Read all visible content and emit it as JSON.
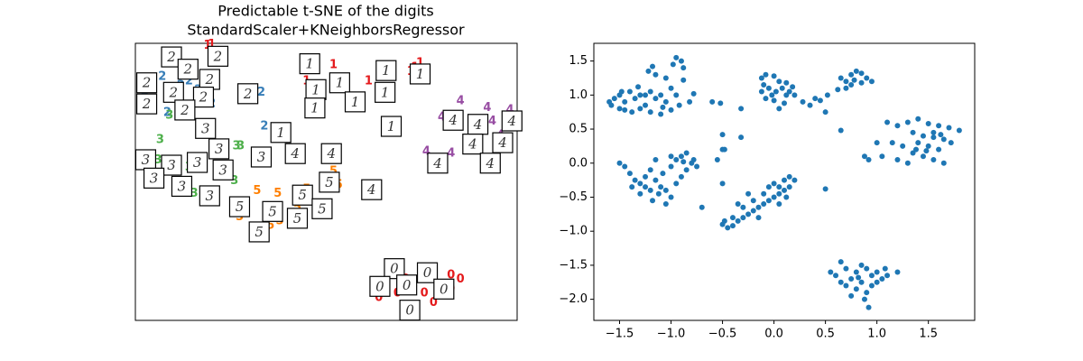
{
  "chart_data": [
    {
      "type": "text-scatter",
      "title": "Predictable t-SNE of the digits",
      "subtitle": "StandardScaler+KNeighborsRegressor",
      "xlim": [
        -1.75,
        1.95
      ],
      "ylim": [
        -2.31,
        1.76
      ],
      "series": [
        {
          "label": "0",
          "color": "#e41a1c",
          "x": [
            0.7,
            0.87,
            1.31,
            1.4,
            1.14,
            0.79,
            1.05,
            1.31,
            0.61,
            0.96
          ],
          "y": [
            -1.58,
            -1.71,
            -1.85,
            -1.71,
            -2.05,
            -1.91,
            -1.91,
            -1.65,
            -1.98,
            -2.11
          ],
          "images": {
            "x": [
              0.76,
              1.08,
              0.62,
              0.88,
              1.24,
              0.91
            ],
            "y": [
              -1.55,
              -1.61,
              -1.81,
              -1.79,
              -1.85,
              -2.16
            ]
          }
        },
        {
          "label": "1",
          "color": "#e41a1c",
          "x": [
            -1.05,
            -1.01,
            0.17,
            -0.09,
            0.51,
            0.7,
            0.96,
            0.92,
            0.0,
            1.01
          ],
          "y": [
            1.73,
            1.74,
            1.44,
            1.2,
            1.2,
            1.4,
            1.4,
            1.34,
            1.4,
            1.47
          ],
          "images": {
            "x": [
              -0.06,
              0.0,
              0.23,
              -0.01,
              0.38,
              0.68,
              1.01,
              0.67,
              -0.34,
              0.73
            ],
            "y": [
              1.46,
              1.08,
              1.18,
              0.81,
              0.9,
              1.36,
              1.31,
              1.04,
              0.45,
              0.54
            ]
          }
        },
        {
          "label": "2",
          "color": "#377eb8",
          "x": [
            -1.49,
            -1.66,
            -1.36,
            -1.44,
            -1.23,
            -1.01,
            -0.53,
            -0.5,
            -1.58,
            -1.14,
            -1.31
          ],
          "y": [
            1.27,
            1.07,
            0.94,
            0.74,
            1.2,
            0.87,
            1.04,
            0.54,
            0.83,
            1.07,
            1.14
          ],
          "images": {
            "x": [
              -1.4,
              -1.24,
              -1.03,
              -1.64,
              -1.38,
              -1.09,
              -1.64,
              -1.27,
              -0.66,
              -0.95
            ],
            "y": [
              1.56,
              1.38,
              1.23,
              1.18,
              1.04,
              0.97,
              0.87,
              0.78,
              1.02,
              1.57
            ]
          }
        },
        {
          "label": "3",
          "color": "#4daf4a",
          "x": [
            -1.51,
            -1.42,
            -0.73,
            -0.77,
            -1.01,
            -1.23,
            -1.36,
            -0.79,
            -1.18,
            -1.53
          ],
          "y": [
            0.34,
            0.7,
            0.25,
            0.25,
            0.14,
            -0.06,
            -0.1,
            -0.26,
            -0.45,
            0.04
          ],
          "images": {
            "x": [
              -1.07,
              -0.94,
              -1.65,
              -1.4,
              -1.15,
              -0.9,
              -1.57,
              -1.3,
              -1.03,
              -0.53
            ],
            "y": [
              0.51,
              0.21,
              0.05,
              -0.03,
              0.01,
              -0.1,
              -0.22,
              -0.34,
              -0.48,
              0.09
            ]
          }
        },
        {
          "label": "4",
          "color": "#984ea3",
          "x": [
            1.4,
            1.66,
            1.71,
            1.22,
            1.07,
            1.49,
            1.79,
            1.31,
            1.88
          ],
          "y": [
            0.91,
            0.81,
            0.61,
            0.67,
            0.17,
            0.28,
            0.41,
            0.14,
            0.78
          ],
          "images": {
            "x": [
              0.15,
              1.33,
              1.57,
              1.9,
              1.81,
              1.52,
              1.69,
              1.18,
              0.54,
              -0.2
            ],
            "y": [
              0.14,
              0.63,
              0.57,
              0.62,
              0.3,
              0.28,
              0.0,
              0.0,
              -0.39,
              0.14
            ]
          }
        },
        {
          "label": "5",
          "color": "#ff7f00",
          "x": [
            0.17,
            0.09,
            -0.09,
            -0.18,
            -0.35,
            -0.57,
            -0.37,
            -0.74,
            0.0,
            0.22,
            -0.44
          ],
          "y": [
            -0.12,
            -0.26,
            -0.39,
            -0.65,
            -0.85,
            -0.41,
            -0.45,
            -0.79,
            -0.65,
            -0.32,
            -0.92
          ],
          "images": {
            "x": [
              0.13,
              -0.13,
              0.06,
              -0.18,
              -0.42,
              -0.74,
              -0.55
            ],
            "y": [
              -0.28,
              -0.47,
              -0.67,
              -0.81,
              -0.71,
              -0.64,
              -1.01
            ]
          }
        }
      ]
    },
    {
      "type": "scatter",
      "color": "#1f77b4",
      "xlim": [
        -1.75,
        1.95
      ],
      "ylim": [
        -2.31,
        1.76
      ],
      "xticks": [
        {
          "value": -1.5,
          "label": "−1.5"
        },
        {
          "value": -1.0,
          "label": "−1.0"
        },
        {
          "value": -0.5,
          "label": "−0.5"
        },
        {
          "value": 0.0,
          "label": "0.0"
        },
        0.5,
        {
          "value": 1.0,
          "label": "1.0"
        },
        1.5
      ],
      "yticks": [
        {
          "value": -2.0,
          "label": "−2.0"
        },
        {
          "value": -1.5,
          "label": "−1.5"
        },
        {
          "value": -1.0,
          "label": "−1.0"
        },
        {
          "value": -0.5,
          "label": "−0.5"
        },
        {
          "value": 0.0,
          "label": "0.0"
        },
        0.5,
        {
          "value": 1.0,
          "label": "1.0"
        },
        1.5
      ],
      "x": [
        -1.58,
        -1.55,
        -1.5,
        -1.45,
        -1.4,
        -1.35,
        -1.3,
        -1.25,
        -1.2,
        -1.15,
        -1.1,
        -1.05,
        -1.0,
        -1.05,
        -0.98,
        -0.95,
        -0.9,
        -0.88,
        -1.22,
        -1.18,
        -1.15,
        -1.45,
        -1.38,
        -1.3,
        -1.2,
        -1.1,
        -1.0,
        -0.92,
        -1.5,
        -1.6,
        -1.48,
        -1.32,
        -1.25,
        -1.08,
        -0.95,
        -0.88,
        -0.78,
        -0.82,
        -0.12,
        -0.08,
        0.0,
        0.05,
        -0.1,
        -0.05,
        0.02,
        0.08,
        0.12,
        0.15,
        0.18,
        -0.12,
        -0.08,
        0.0,
        0.1,
        0.05,
        -0.02,
        0.2,
        0.12,
        0.65,
        0.7,
        0.75,
        0.8,
        0.85,
        0.9,
        0.95,
        0.85,
        0.75,
        0.7,
        0.62,
        0.78,
        0.52,
        0.45,
        0.4,
        0.35,
        0.28,
        0.5,
        1.1,
        1.2,
        1.3,
        1.4,
        1.5,
        1.6,
        1.7,
        1.8,
        1.35,
        1.45,
        1.55,
        1.65,
        1.4,
        1.5,
        1.6,
        1.35,
        1.45,
        1.55,
        1.65,
        1.3,
        1.2,
        1.25,
        1.55,
        1.72,
        1.62,
        1.48,
        1.38,
        1.15,
        1.05,
        0.92,
        1.0,
        -1.5,
        -1.45,
        -1.4,
        -1.35,
        -1.3,
        -1.25,
        -1.2,
        -1.15,
        -1.1,
        -1.05,
        -1.0,
        -1.12,
        -1.2,
        -1.3,
        -1.08,
        -1.0,
        -0.95,
        -0.9,
        -0.85,
        -0.8,
        -0.75,
        -0.9,
        -0.95,
        -1.15,
        -1.0,
        -1.18,
        -0.78,
        -0.85,
        -1.38,
        -1.25,
        -1.05,
        -0.88,
        -0.5,
        -0.45,
        -0.4,
        -0.35,
        -0.3,
        -0.25,
        -0.2,
        -0.15,
        -0.1,
        -0.05,
        0.0,
        0.05,
        -0.1,
        -0.05,
        0.0,
        0.05,
        0.1,
        0.15,
        0.2,
        0.15,
        0.1,
        -0.2,
        -0.3,
        -0.4,
        -0.15,
        -0.25,
        -0.35,
        0.12,
        0.05,
        -0.48,
        0.55,
        0.6,
        0.65,
        0.7,
        0.75,
        0.8,
        0.85,
        0.9,
        0.95,
        1.0,
        1.05,
        1.1,
        1.2,
        0.7,
        0.8,
        0.9,
        0.85,
        0.95,
        1.0,
        0.75,
        0.88,
        0.92,
        0.65,
        1.08,
        0.82,
        -0.6,
        -0.52,
        -0.32,
        -0.5,
        -0.32,
        -0.5,
        -0.55,
        -0.5,
        -0.7,
        0.5,
        0.65,
        0.88,
        -0.48
      ],
      "y": [
        0.85,
        0.95,
        1.0,
        0.9,
        1.05,
        0.95,
        1.0,
        0.85,
        1.05,
        0.95,
        1.0,
        0.9,
        1.1,
        1.25,
        1.45,
        1.55,
        1.5,
        1.4,
        1.35,
        1.42,
        1.3,
        0.78,
        0.75,
        0.8,
        0.75,
        0.72,
        0.78,
        0.85,
        0.8,
        0.9,
        1.05,
        1.12,
        1.0,
        0.82,
        1.0,
        1.22,
        1.02,
        0.9,
        1.25,
        1.3,
        1.28,
        1.2,
        1.15,
        1.1,
        1.05,
        1.1,
        1.0,
        1.05,
        1.12,
        1.05,
        0.95,
        0.92,
        0.88,
        0.8,
        1.0,
        1.0,
        1.18,
        1.25,
        1.2,
        1.3,
        1.35,
        1.32,
        1.25,
        1.2,
        1.18,
        1.15,
        1.1,
        1.08,
        1.22,
        1.0,
        0.92,
        0.95,
        0.85,
        0.9,
        0.75,
        0.6,
        0.55,
        0.6,
        0.65,
        0.58,
        0.55,
        0.52,
        0.48,
        0.45,
        0.4,
        0.38,
        0.35,
        0.3,
        0.25,
        0.2,
        0.15,
        0.1,
        0.05,
        0.0,
        0.0,
        0.05,
        0.25,
        0.45,
        0.3,
        0.42,
        0.18,
        0.2,
        0.3,
        0.1,
        0.05,
        0.3,
        0.0,
        -0.05,
        -0.15,
        -0.25,
        -0.3,
        -0.2,
        -0.1,
        -0.25,
        -0.35,
        -0.4,
        -0.5,
        -0.45,
        -0.4,
        -0.45,
        -0.15,
        -0.05,
        0.05,
        0.1,
        0.15,
        0.0,
        -0.05,
        -0.2,
        -0.3,
        0.05,
        0.1,
        -0.55,
        0.05,
        -0.1,
        -0.35,
        -0.35,
        -0.6,
        0.02,
        -0.9,
        -0.95,
        -0.92,
        -0.85,
        -0.8,
        -0.75,
        -0.7,
        -0.65,
        -0.6,
        -0.55,
        -0.5,
        -0.45,
        -0.45,
        -0.35,
        -0.3,
        -0.35,
        -0.25,
        -0.2,
        -0.25,
        -0.35,
        -0.4,
        -0.55,
        -0.65,
        -0.8,
        -0.8,
        -0.45,
        -0.6,
        -0.5,
        -0.6,
        -0.85,
        -1.6,
        -1.65,
        -1.45,
        -1.55,
        -1.7,
        -1.6,
        -1.5,
        -1.55,
        -1.65,
        -1.6,
        -1.7,
        -1.65,
        -1.6,
        -1.8,
        -1.85,
        -1.9,
        -1.75,
        -1.8,
        -1.75,
        -1.95,
        -2.0,
        -2.12,
        -1.75,
        -1.55,
        -1.68,
        0.9,
        0.88,
        0.8,
        0.42,
        0.38,
        0.2,
        0.05,
        -0.3,
        -0.65,
        -0.38,
        0.48,
        0.1,
        0.2
      ]
    }
  ]
}
